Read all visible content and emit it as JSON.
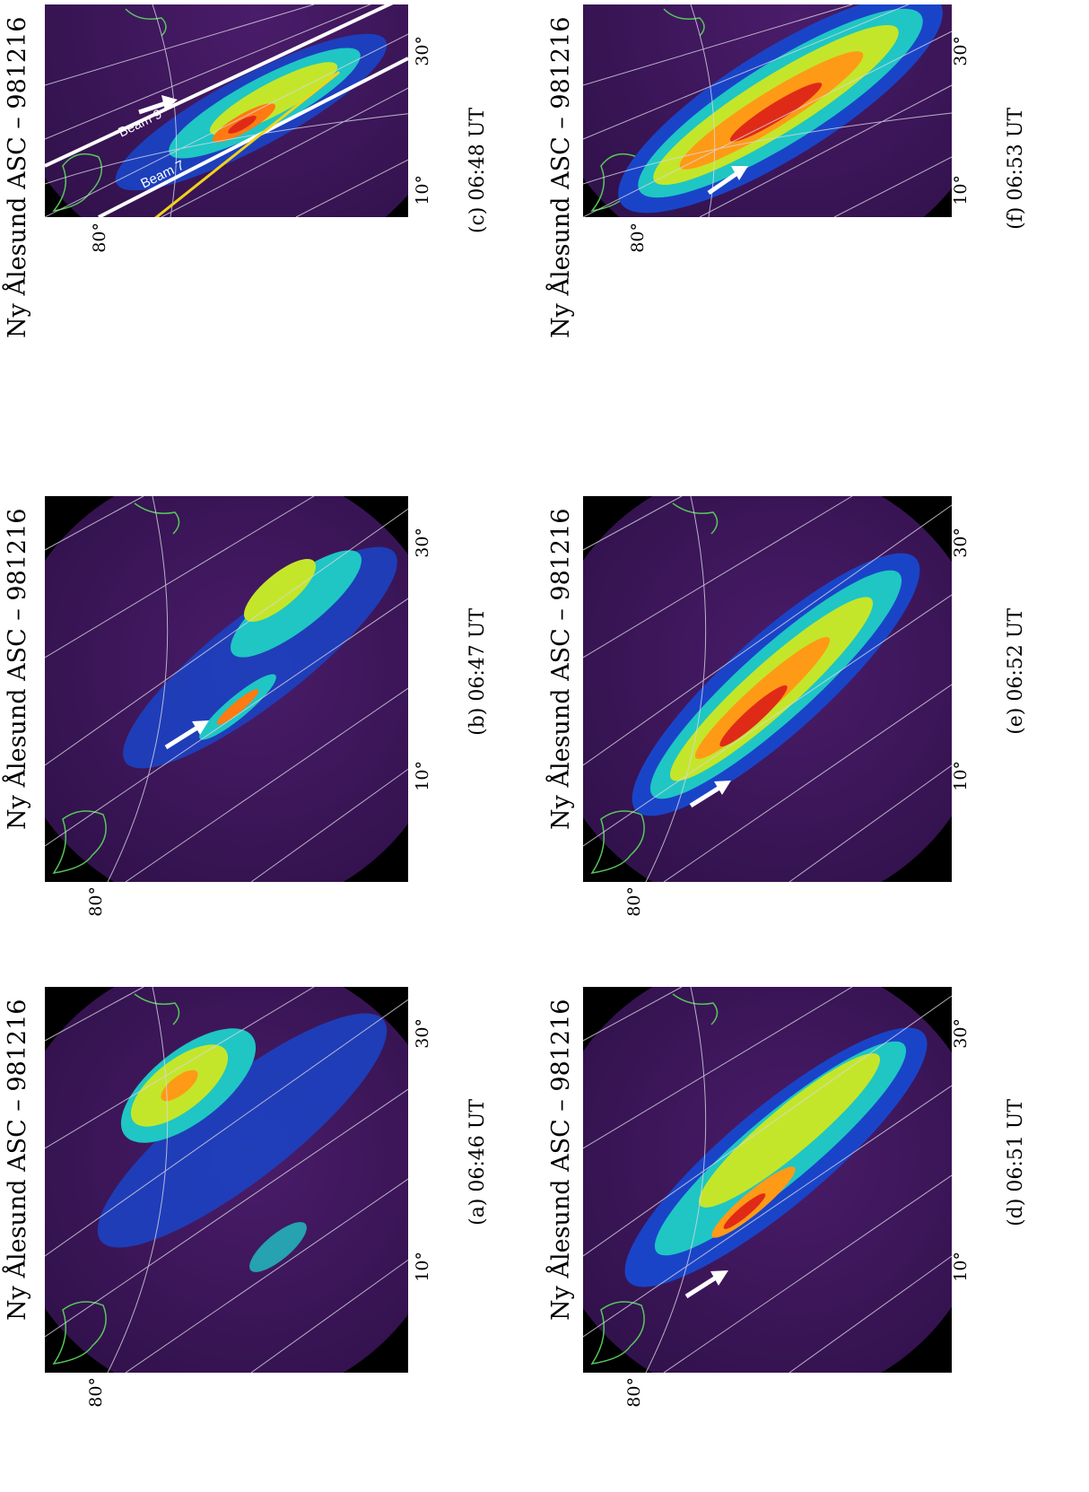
{
  "figure": {
    "panels": [
      {
        "id": "c",
        "title": "Ny Ålesund ASC – 981216",
        "caption": "(c) 06:48 UT",
        "lat_label": "80°",
        "lon_labels": [
          "10°",
          "30°"
        ],
        "annotations": {
          "beam_labels": [
            "Beam 9",
            "Beam 7"
          ],
          "line_colors": {
            "beams": "#ffffff",
            "track": "#f2d21a"
          }
        }
      },
      {
        "id": "f",
        "title": "Ny Ålesund ASC – 981216",
        "caption": "(f) 06:53 UT",
        "lat_label": "80°",
        "lon_labels": [
          "10°",
          "30°"
        ]
      },
      {
        "id": "b",
        "title": "Ny Ålesund ASC – 981216",
        "caption": "(b) 06:47 UT",
        "lat_label": "80°",
        "lon_labels": [
          "10°",
          "30°"
        ]
      },
      {
        "id": "e",
        "title": "Ny Ålesund ASC – 981216",
        "caption": "(e) 06:52 UT",
        "lat_label": "80°",
        "lon_labels": [
          "10°",
          "30°"
        ]
      },
      {
        "id": "a",
        "title": "Ny Ålesund ASC – 981216",
        "caption": "(a) 06:46 UT",
        "lat_label": "80°",
        "lon_labels": [
          "10°",
          "30°"
        ]
      },
      {
        "id": "d",
        "title": "Ny Ålesund ASC – 981216",
        "caption": "(d) 06:51 UT",
        "lat_label": "80°",
        "lon_labels": [
          "10°",
          "30°"
        ]
      }
    ],
    "colors": {
      "background": "#000000",
      "sky": "#3a1454",
      "coast": "#56c75a",
      "grid": "#d8d8e4",
      "arrow": "#ffffff"
    }
  }
}
